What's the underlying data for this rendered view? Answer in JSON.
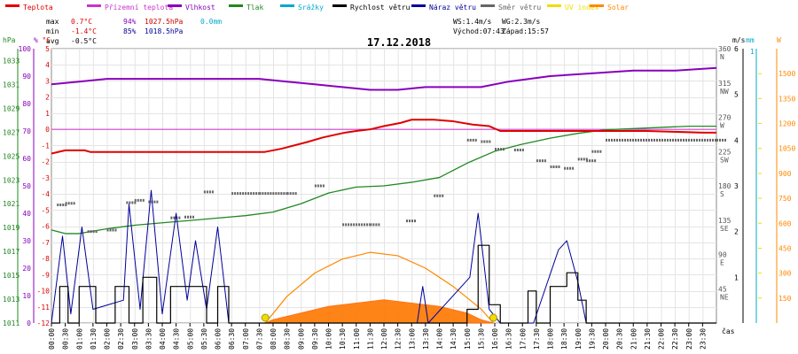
{
  "chart_data": {
    "type": "line",
    "title": "17.12.2018",
    "legend": [
      {
        "name": "Teplota",
        "color": "#e00000"
      },
      {
        "name": "Přízemní teplota",
        "color": "#cc33cc"
      },
      {
        "name": "Vlhkost",
        "color": "#8800bb"
      },
      {
        "name": "Tlak",
        "color": "#228822"
      },
      {
        "name": "Srážky",
        "color": "#00aacc"
      },
      {
        "name": "Rychlost větru",
        "color": "#000000"
      },
      {
        "name": "Náraz větru",
        "color": "#000099"
      },
      {
        "name": "Směr větru",
        "color": "#666666"
      },
      {
        "name": "UV index",
        "color": "#eedd00"
      },
      {
        "name": "Solar",
        "color": "#ff8800"
      }
    ],
    "stats": {
      "max_label": "max",
      "max_temp": "0.7°C",
      "max_hum": "94%",
      "max_press": "1027.5hPa",
      "max_rain": "0.0mm",
      "min_label": "min",
      "min_temp": "-1.4°C",
      "min_hum": "85%",
      "min_press": "1018.5hPa",
      "avg_label": "avg",
      "avg_temp": "-0.5°C",
      "ws": "WS:1.4m/s",
      "wg": "WG:2.3m/s",
      "sunrise": "Východ:07:43",
      "sunset": "Západ:15:57"
    },
    "axes": {
      "hpa": {
        "unit": "hPa",
        "ticks": [
          "1033",
          "1031",
          "1029",
          "1027",
          "1025",
          "1023",
          "1021",
          "1019",
          "1017",
          "1015",
          "1013",
          "1011"
        ],
        "range": [
          1011,
          1034
        ]
      },
      "pct": {
        "unit": "%",
        "ticks": [
          "100",
          "90",
          "80",
          "70",
          "60",
          "50",
          "40",
          "30",
          "20",
          "10",
          "0"
        ],
        "range": [
          0,
          100
        ]
      },
      "temp": {
        "unit": "°C",
        "ticks": [
          "5",
          "4",
          "3",
          "2",
          "1",
          "0",
          "-1",
          "-2",
          "-3",
          "-4",
          "-5",
          "-6",
          "-7",
          "-8",
          "-9",
          "-10",
          "-11",
          "-12"
        ],
        "range": [
          -12,
          5
        ]
      },
      "dir": {
        "ticks": [
          {
            "deg": "360",
            "dir": "N"
          },
          {
            "deg": "315",
            "dir": "NW"
          },
          {
            "deg": "270",
            "dir": "W"
          },
          {
            "deg": "225",
            "dir": "SW"
          },
          {
            "deg": "180",
            "dir": "S"
          },
          {
            "deg": "135",
            "dir": "SE"
          },
          {
            "deg": "90",
            "dir": "E"
          },
          {
            "deg": "45",
            "dir": "NE"
          }
        ],
        "range": [
          0,
          360
        ]
      },
      "ms": {
        "unit": "m/s",
        "ticks": [
          "6",
          "5",
          "4",
          "3",
          "2",
          "1"
        ],
        "range": [
          0,
          6
        ]
      },
      "mm": {
        "unit": "mm",
        "ticks": [
          "1"
        ],
        "range": [
          0,
          1
        ]
      },
      "w": {
        "unit": "W",
        "ticks": [
          "1500",
          "1350",
          "1200",
          "1050",
          "900",
          "750",
          "600",
          "450",
          "300",
          "150"
        ],
        "range": [
          0,
          1650
        ]
      },
      "x": {
        "label": "čas",
        "ticks": [
          "00:00",
          "00:30",
          "01:00",
          "01:30",
          "02:00",
          "02:30",
          "03:00",
          "03:30",
          "04:00",
          "04:30",
          "05:00",
          "05:30",
          "06:00",
          "06:30",
          "07:00",
          "07:30",
          "08:00",
          "08:30",
          "09:00",
          "09:30",
          "10:00",
          "10:30",
          "11:00",
          "11:30",
          "12:00",
          "12:30",
          "13:00",
          "13:30",
          "14:00",
          "14:30",
          "15:00",
          "15:30",
          "16:00",
          "16:30",
          "17:00",
          "17:30",
          "18:00",
          "18:30",
          "19:00",
          "19:30",
          "20:00",
          "20:30",
          "21:00",
          "21:30",
          "22:00",
          "22:30",
          "23:00",
          "23:30"
        ],
        "range": [
          0,
          24
        ]
      }
    },
    "series": {
      "temperature": {
        "unit": "°C",
        "points": [
          [
            0,
            -1.5
          ],
          [
            0.5,
            -1.3
          ],
          [
            1.2,
            -1.3
          ],
          [
            1.4,
            -1.4
          ],
          [
            7.7,
            -1.4
          ],
          [
            8.3,
            -1.2
          ],
          [
            9.2,
            -0.8
          ],
          [
            9.8,
            -0.5
          ],
          [
            10.6,
            -0.2
          ],
          [
            11.0,
            -0.1
          ],
          [
            11.5,
            0.0
          ],
          [
            12.0,
            0.2
          ],
          [
            12.6,
            0.4
          ],
          [
            13.0,
            0.6
          ],
          [
            13.8,
            0.6
          ],
          [
            14.5,
            0.5
          ],
          [
            15.2,
            0.3
          ],
          [
            15.8,
            0.2
          ],
          [
            16.2,
            -0.1
          ],
          [
            17,
            -0.1
          ],
          [
            20,
            -0.1
          ],
          [
            21.5,
            -0.1
          ],
          [
            23.5,
            -0.2
          ],
          [
            24,
            -0.2
          ]
        ]
      },
      "humidity": {
        "unit": "%",
        "points": [
          [
            0,
            87
          ],
          [
            1,
            88
          ],
          [
            2,
            89
          ],
          [
            3,
            89
          ],
          [
            5,
            89
          ],
          [
            7.5,
            89
          ],
          [
            8.5,
            88
          ],
          [
            9.5,
            87
          ],
          [
            10.5,
            86
          ],
          [
            11.5,
            85
          ],
          [
            12.5,
            85
          ],
          [
            13.5,
            86
          ],
          [
            14.5,
            86
          ],
          [
            15.5,
            86
          ],
          [
            16.5,
            88
          ],
          [
            18,
            90
          ],
          [
            19.5,
            91
          ],
          [
            21,
            92
          ],
          [
            22.5,
            92
          ],
          [
            24,
            93
          ]
        ]
      },
      "pressure": {
        "unit": "hPa",
        "points": [
          [
            0,
            1018.8
          ],
          [
            0.5,
            1018.5
          ],
          [
            1,
            1018.5
          ],
          [
            2,
            1018.9
          ],
          [
            3,
            1019.2
          ],
          [
            4,
            1019.4
          ],
          [
            5,
            1019.6
          ],
          [
            6,
            1019.8
          ],
          [
            7,
            1020.0
          ],
          [
            8,
            1020.3
          ],
          [
            9,
            1021.0
          ],
          [
            10,
            1021.9
          ],
          [
            11,
            1022.4
          ],
          [
            12,
            1022.5
          ],
          [
            13,
            1022.8
          ],
          [
            14,
            1023.2
          ],
          [
            15,
            1024.4
          ],
          [
            16,
            1025.4
          ],
          [
            17,
            1026.0
          ],
          [
            18,
            1026.5
          ],
          [
            19,
            1026.9
          ],
          [
            20,
            1027.2
          ],
          [
            21,
            1027.3
          ],
          [
            22,
            1027.4
          ],
          [
            23,
            1027.5
          ],
          [
            24,
            1027.5
          ]
        ]
      },
      "wind_direction_deg": {
        "unit": "°",
        "points": [
          [
            0.2,
            155
          ],
          [
            0.5,
            157
          ],
          [
            1.3,
            120
          ],
          [
            2.0,
            122
          ],
          [
            2.7,
            158
          ],
          [
            3.0,
            161
          ],
          [
            3.5,
            159
          ],
          [
            4.3,
            138
          ],
          [
            4.8,
            139
          ],
          [
            5.5,
            172
          ],
          [
            6.5,
            170
          ],
          [
            7.5,
            170
          ],
          [
            8.5,
            170
          ],
          [
            9.5,
            180
          ],
          [
            10.5,
            129
          ],
          [
            11.5,
            129
          ],
          [
            12.8,
            134
          ],
          [
            13.8,
            167
          ],
          [
            15.0,
            240
          ],
          [
            15.5,
            238
          ],
          [
            16.0,
            228
          ],
          [
            16.7,
            227
          ],
          [
            17.5,
            213
          ],
          [
            18.0,
            205
          ],
          [
            18.5,
            203
          ],
          [
            19.0,
            215
          ],
          [
            19.3,
            213
          ],
          [
            19.5,
            225
          ],
          [
            20,
            240
          ],
          [
            24,
            240
          ]
        ]
      },
      "wind_speed": {
        "unit": "m/s",
        "points": [
          [
            0,
            0
          ],
          [
            0.3,
            0.8
          ],
          [
            0.6,
            0
          ],
          [
            1.0,
            0.8
          ],
          [
            1.6,
            0
          ],
          [
            2.3,
            0.8
          ],
          [
            2.8,
            0
          ],
          [
            3.3,
            1.0
          ],
          [
            3.8,
            0
          ],
          [
            4.3,
            0.8
          ],
          [
            5.2,
            0.8
          ],
          [
            5.6,
            0
          ],
          [
            6.0,
            0.8
          ],
          [
            6.4,
            0
          ],
          [
            9,
            0
          ],
          [
            12.5,
            0
          ],
          [
            13,
            0
          ],
          [
            15.0,
            0.3
          ],
          [
            15.4,
            1.7
          ],
          [
            15.8,
            0.4
          ],
          [
            16.2,
            0
          ],
          [
            16.8,
            0
          ],
          [
            17.2,
            0.7
          ],
          [
            17.5,
            0
          ],
          [
            18.0,
            0.8
          ],
          [
            18.6,
            1.1
          ],
          [
            19.0,
            0.5
          ],
          [
            19.3,
            0
          ],
          [
            24,
            0
          ]
        ]
      },
      "wind_gust": {
        "unit": "m/s",
        "points": [
          [
            0,
            0
          ],
          [
            0.4,
            1.9
          ],
          [
            0.7,
            0.2
          ],
          [
            1.1,
            2.1
          ],
          [
            1.5,
            0.3
          ],
          [
            2.6,
            0.5
          ],
          [
            2.8,
            2.6
          ],
          [
            3.2,
            0.3
          ],
          [
            3.6,
            2.9
          ],
          [
            4.0,
            0.2
          ],
          [
            4.5,
            2.4
          ],
          [
            4.9,
            0.5
          ],
          [
            5.2,
            1.8
          ],
          [
            5.6,
            0.3
          ],
          [
            6.0,
            2.1
          ],
          [
            6.4,
            0
          ],
          [
            9,
            0
          ],
          [
            13.2,
            0
          ],
          [
            13.4,
            0.8
          ],
          [
            13.6,
            0
          ],
          [
            15.1,
            1.0
          ],
          [
            15.4,
            2.4
          ],
          [
            15.8,
            0.3
          ],
          [
            16.2,
            0
          ],
          [
            17.4,
            0
          ],
          [
            18.3,
            1.6
          ],
          [
            18.6,
            1.8
          ],
          [
            19.0,
            0.9
          ],
          [
            19.3,
            0
          ],
          [
            24,
            0
          ]
        ]
      },
      "solar": {
        "unit": "W/m²",
        "points": [
          [
            7.7,
            0
          ],
          [
            8,
            20
          ],
          [
            9,
            60
          ],
          [
            10,
            100
          ],
          [
            11,
            120
          ],
          [
            12,
            140
          ],
          [
            13,
            120
          ],
          [
            14,
            100
          ],
          [
            15,
            60
          ],
          [
            15.5,
            20
          ],
          [
            15.95,
            0
          ]
        ]
      },
      "solar_max": {
        "unit": "W/m²",
        "points": [
          [
            7.72,
            0
          ],
          [
            8.5,
            160
          ],
          [
            9.5,
            300
          ],
          [
            10.5,
            385
          ],
          [
            11.5,
            425
          ],
          [
            12.5,
            405
          ],
          [
            13.5,
            330
          ],
          [
            14.5,
            220
          ],
          [
            15.5,
            85
          ],
          [
            15.95,
            0
          ]
        ]
      },
      "uv_index": {
        "unit": "",
        "points": []
      },
      "ground_temperature": {
        "unit": "°C",
        "points": []
      },
      "rain": {
        "unit": "mm",
        "points": []
      }
    },
    "reference_line_temp": 0,
    "sun_markers": [
      "07:43",
      "15:57"
    ],
    "grid": true
  }
}
